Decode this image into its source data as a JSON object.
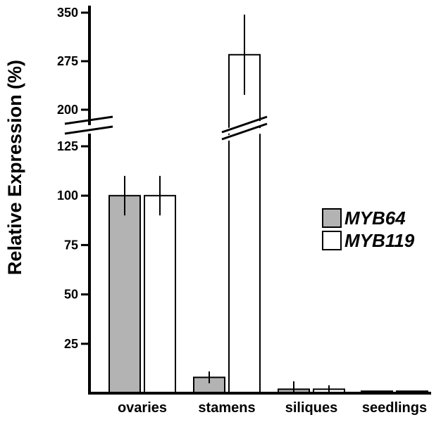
{
  "chart_data": {
    "type": "bar",
    "ylabel": "Relative Expression (%)",
    "xlabel": "",
    "categories": [
      "ovaries",
      "stamens",
      "siliques",
      "seedlings"
    ],
    "series": [
      {
        "name": "MYB64",
        "color": "#b3b3b3",
        "values": [
          100,
          8,
          2,
          1
        ],
        "errors": [
          10,
          3,
          4,
          0
        ]
      },
      {
        "name": "MYB119",
        "color": "#ffffff",
        "values": [
          100,
          285,
          2,
          1
        ],
        "errors": [
          10,
          62,
          2,
          0
        ]
      }
    ],
    "yticks": [
      {
        "value": 25,
        "label": "25"
      },
      {
        "value": 50,
        "label": "50"
      },
      {
        "value": 75,
        "label": "75"
      },
      {
        "value": 100,
        "label": "100"
      },
      {
        "value": 125,
        "label": "125"
      },
      {
        "value": 200,
        "label": "200"
      },
      {
        "value": 275,
        "label": "275"
      },
      {
        "value": 350,
        "label": "350"
      }
    ],
    "axis_break": {
      "from": 125,
      "to": 200
    },
    "ylim": [
      0,
      350
    ],
    "legend_position": "right",
    "grid": false
  }
}
